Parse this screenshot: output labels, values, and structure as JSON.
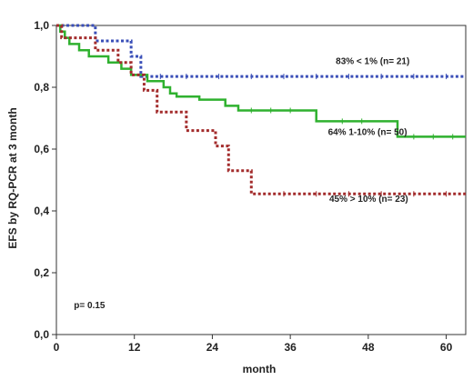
{
  "chart_data": {
    "type": "line",
    "subtype": "kaplan-meier step curves",
    "xlabel": "month",
    "ylabel": "EFS by RQ-PCR at 3 month",
    "xlim": [
      0,
      63
    ],
    "ylim": [
      0,
      1.0
    ],
    "x_ticks": [
      0,
      12,
      24,
      36,
      48,
      60
    ],
    "x_tick_labels": [
      "0",
      "12",
      "24",
      "36",
      "48",
      "60"
    ],
    "y_ticks": [
      0,
      0.2,
      0.4,
      0.6,
      0.8,
      1.0
    ],
    "y_tick_labels": [
      "0,0",
      "0,2",
      "0,4",
      "0,6",
      "0,8",
      "1,0"
    ],
    "grid": false,
    "legend": "none",
    "series": [
      {
        "name": "83% < 1% (n= 21)",
        "color": "#3a4fb8",
        "line_style": "dotted",
        "steps": [
          [
            0,
            1.0
          ],
          [
            6,
            1.0
          ],
          [
            6,
            0.95
          ],
          [
            11.5,
            0.95
          ],
          [
            11.5,
            0.9
          ],
          [
            13,
            0.9
          ],
          [
            13,
            0.835
          ],
          [
            63,
            0.835
          ]
        ],
        "censor_marks": [
          16,
          20,
          25,
          30,
          35,
          40,
          45,
          50,
          55,
          60
        ]
      },
      {
        "name": "64% 1-10% (n= 50)",
        "color": "#2fb12f",
        "line_style": "solid",
        "steps": [
          [
            0,
            1.0
          ],
          [
            0.6,
            0.98
          ],
          [
            1.3,
            0.96
          ],
          [
            2,
            0.94
          ],
          [
            3.5,
            0.92
          ],
          [
            5,
            0.9
          ],
          [
            8,
            0.88
          ],
          [
            10,
            0.86
          ],
          [
            11.5,
            0.84
          ],
          [
            14,
            0.82
          ],
          [
            16.5,
            0.8
          ],
          [
            17.5,
            0.78
          ],
          [
            18.5,
            0.77
          ],
          [
            22,
            0.76
          ],
          [
            26,
            0.74
          ],
          [
            28,
            0.725
          ],
          [
            40,
            0.69
          ],
          [
            52.5,
            0.64
          ],
          [
            63,
            0.64
          ]
        ],
        "censor_marks": [
          30,
          33,
          36,
          44,
          47,
          55,
          58,
          61
        ]
      },
      {
        "name": "45% > 10% (n= 23)",
        "color": "#a32c2c",
        "line_style": "dotted",
        "steps": [
          [
            0,
            1.0
          ],
          [
            0.8,
            0.96
          ],
          [
            6,
            0.92
          ],
          [
            9.5,
            0.88
          ],
          [
            11.5,
            0.84
          ],
          [
            13.5,
            0.79
          ],
          [
            15.5,
            0.72
          ],
          [
            20,
            0.66
          ],
          [
            24.5,
            0.61
          ],
          [
            26.5,
            0.53
          ],
          [
            30,
            0.455
          ],
          [
            63,
            0.455
          ]
        ],
        "censor_marks": [
          35,
          40,
          45,
          50,
          55,
          60
        ]
      }
    ],
    "annotations": [
      {
        "text": "83% < 1% (n= 21)",
        "x": 43,
        "y": 0.875
      },
      {
        "text": "64% 1-10% (n= 50)",
        "x": 41.8,
        "y": 0.645
      },
      {
        "text": "45% > 10% (n= 23)",
        "x": 42,
        "y": 0.43
      },
      {
        "text": "p= 0.15",
        "x": 2.7,
        "y": 0.085
      }
    ]
  }
}
